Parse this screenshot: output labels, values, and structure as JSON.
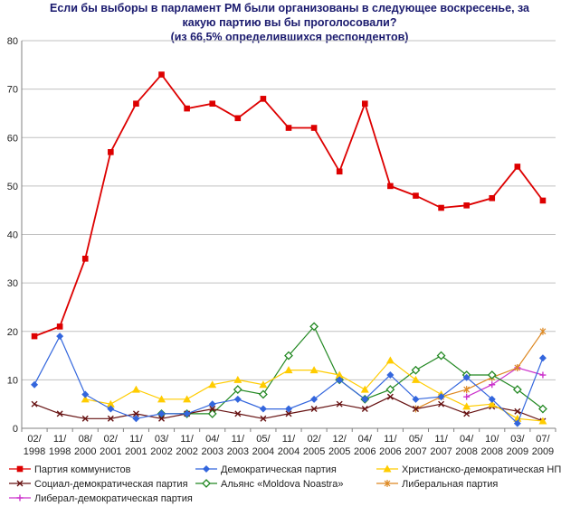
{
  "chart_data": {
    "type": "line",
    "title": [
      "Если бы выборы в парламент РМ были организованы в следующее воскресенье, за",
      "какую партию вы  бы проголосовали?",
      "(из 66,5% определившихся респондентов)"
    ],
    "ylim": [
      0,
      80
    ],
    "yticks": [
      0,
      10,
      20,
      30,
      40,
      50,
      60,
      70,
      80
    ],
    "grid": true,
    "categories": [
      [
        "02/",
        "1998"
      ],
      [
        "11/",
        "1998"
      ],
      [
        "08/",
        "2000"
      ],
      [
        "02/",
        "2001"
      ],
      [
        "11/",
        "2001"
      ],
      [
        "03/",
        "2002"
      ],
      [
        "11/",
        "2002"
      ],
      [
        "04/",
        "2003"
      ],
      [
        "11/",
        "2003"
      ],
      [
        "05/",
        "2004"
      ],
      [
        "11/",
        "2004"
      ],
      [
        "02/",
        "2005"
      ],
      [
        "12/",
        "2005"
      ],
      [
        "04/",
        "2006"
      ],
      [
        "11/",
        "2006"
      ],
      [
        "05/",
        "2007"
      ],
      [
        "11/",
        "2007"
      ],
      [
        "04/",
        "2008"
      ],
      [
        "10/",
        "2008"
      ],
      [
        "03/",
        "2009"
      ],
      [
        "07/",
        "2009"
      ]
    ],
    "series": [
      {
        "name": "Партия коммунистов",
        "color": "#dd0000",
        "marker": "square",
        "values": [
          19,
          21,
          35,
          57,
          67,
          73,
          66,
          67,
          64,
          68,
          62,
          62,
          53,
          67,
          50,
          48,
          45.5,
          46,
          47.5,
          54,
          47
        ]
      },
      {
        "name": "Демократическая партия",
        "color": "#3366dd",
        "marker": "diamond",
        "values": [
          9,
          19,
          7,
          4,
          2,
          3,
          3,
          5,
          6,
          4,
          4,
          6,
          10,
          6,
          11,
          6,
          6.5,
          10.5,
          6,
          1,
          14.5
        ]
      },
      {
        "name": "Христианско-демократическая НП",
        "color": "#ffcc00",
        "marker": "triangle",
        "values": [
          null,
          null,
          6,
          5,
          8,
          6,
          6,
          9,
          10,
          9,
          12,
          12,
          11,
          8,
          14,
          10,
          7,
          4.5,
          5,
          2,
          1.5
        ]
      },
      {
        "name": "Социал-демократическая партия",
        "color": "#661111",
        "marker": "x",
        "values": [
          5,
          3,
          2,
          2,
          3,
          2,
          3,
          4,
          3,
          2,
          3,
          4,
          5,
          4,
          6.5,
          4,
          5,
          3,
          4.5,
          3.5,
          1.5
        ]
      },
      {
        "name": "Альянс «Moldova Noastra»",
        "color": "#228822",
        "marker": "diamond-open",
        "values": [
          null,
          null,
          null,
          null,
          null,
          3,
          3,
          3,
          8,
          7,
          15,
          21,
          10,
          6,
          8,
          12,
          15,
          11,
          11,
          8,
          4
        ]
      },
      {
        "name": "Либеральная партия",
        "color": "#dd8822",
        "marker": "star",
        "values": [
          null,
          null,
          null,
          null,
          null,
          null,
          null,
          null,
          null,
          null,
          null,
          null,
          null,
          null,
          null,
          4,
          6.5,
          8,
          10.5,
          12.5,
          20
        ]
      },
      {
        "name": "Либерал-демократическая партия",
        "color": "#cc33cc",
        "marker": "plus",
        "values": [
          null,
          null,
          null,
          null,
          null,
          null,
          null,
          null,
          null,
          null,
          null,
          null,
          null,
          null,
          null,
          null,
          null,
          6.5,
          9,
          12.5,
          11
        ]
      }
    ]
  }
}
